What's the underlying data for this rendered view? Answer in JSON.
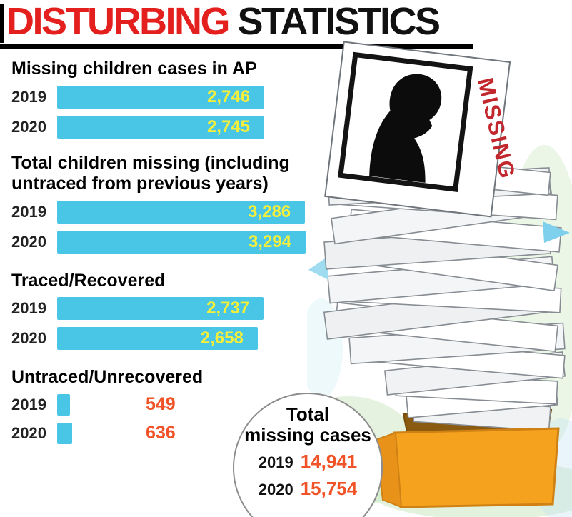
{
  "header": {
    "title_red": "DISTURBING",
    "title_black": " STATISTICS"
  },
  "scale": {
    "max_value": 3294
  },
  "chart_data": [
    {
      "type": "bar",
      "title": "Missing children cases in AP",
      "categories": [
        "2019",
        "2020"
      ],
      "values": [
        2746,
        2745
      ],
      "labels": [
        "2,746",
        "2,745"
      ],
      "value_label_position": "inside"
    },
    {
      "type": "bar",
      "title": "Total children missing (including untraced from previous years)",
      "categories": [
        "2019",
        "2020"
      ],
      "values": [
        3286,
        3294
      ],
      "labels": [
        "3,286",
        "3,294"
      ],
      "value_label_position": "inside"
    },
    {
      "type": "bar",
      "title": "Traced/Recovered",
      "categories": [
        "2019",
        "2020"
      ],
      "values": [
        2737,
        2658
      ],
      "labels": [
        "2,737",
        "2,658"
      ],
      "value_label_position": "inside"
    },
    {
      "type": "bar",
      "title": "Untraced/Unrecovered",
      "categories": [
        "2019",
        "2020"
      ],
      "values": [
        549,
        636
      ],
      "labels": [
        "549",
        "636"
      ],
      "value_label_position": "outside"
    }
  ],
  "total_badge": {
    "title_line1": "Total",
    "title_line2": "missing cases",
    "rows": [
      {
        "year": "2019",
        "value": "14,941"
      },
      {
        "year": "2020",
        "value": "15,754"
      }
    ]
  },
  "illustration": {
    "missing_label": "MISSING"
  },
  "colors": {
    "title_red": "#e4201e",
    "bar_cyan": "#49c5e5",
    "bar_value_yellow": "#f4ef3a",
    "value_red": "#f05327",
    "missing_red": "#c1272d",
    "box_orange": "#f5a31f"
  }
}
